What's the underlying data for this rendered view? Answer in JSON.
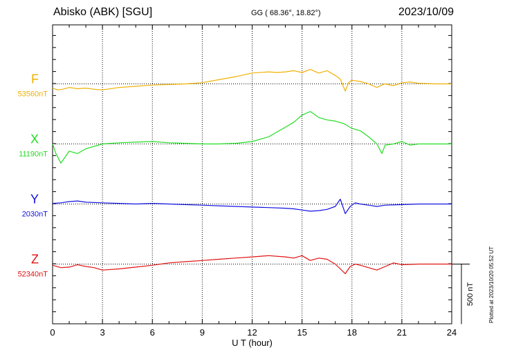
{
  "header": {
    "station": "Abisko (ABK)  [SGU]",
    "coords": "GG ( 68.36°,  18.82°)",
    "date": "2023/10/09"
  },
  "footer": {
    "plotted": "Plotted at 2023/10/20 05:52 UT"
  },
  "chart_data": {
    "type": "line",
    "xlabel": "U T (hour)",
    "xlim": [
      0,
      24
    ],
    "xticks": [
      0,
      3,
      6,
      9,
      12,
      15,
      18,
      21,
      24
    ],
    "scale_bar_label": "500 nT",
    "scale_bar_nT": 500,
    "panel_offset_nT": 500,
    "series": [
      {
        "name": "F",
        "baseline_label": "53560nT",
        "color": "#f0b000",
        "x": [
          0,
          0.3,
          0.6,
          1,
          1.5,
          2,
          2.5,
          3,
          4,
          5,
          6,
          7,
          8,
          9,
          10,
          11,
          12,
          13,
          13.5,
          14,
          14.5,
          15,
          15.5,
          16,
          16.5,
          17,
          17.3,
          17.6,
          17.8,
          18,
          18.5,
          19,
          19.5,
          19.8,
          20,
          20.5,
          21,
          21.5,
          22,
          23,
          24
        ],
        "y": [
          -35,
          -50,
          -45,
          -30,
          -40,
          -35,
          -45,
          -50,
          -30,
          -20,
          -10,
          -5,
          0,
          10,
          35,
          60,
          90,
          100,
          95,
          100,
          110,
          95,
          120,
          90,
          110,
          70,
          40,
          -60,
          10,
          30,
          20,
          0,
          -30,
          -10,
          0,
          -15,
          10,
          15,
          5,
          0,
          0
        ]
      },
      {
        "name": "X",
        "baseline_label": "11190nT",
        "color": "#20dd20",
        "x": [
          0,
          0.2,
          0.5,
          0.8,
          1,
          1.5,
          2,
          2.5,
          3,
          4,
          5,
          6,
          7,
          8,
          9,
          10,
          11,
          12,
          13,
          14,
          14.5,
          15,
          15.5,
          16,
          16.5,
          17,
          17.5,
          18,
          18.5,
          19,
          19.5,
          19.8,
          20,
          20.5,
          21,
          21.5,
          22,
          23,
          24
        ],
        "y": [
          0,
          -80,
          -160,
          -100,
          -60,
          -80,
          -40,
          -20,
          0,
          10,
          15,
          20,
          10,
          5,
          0,
          0,
          5,
          20,
          60,
          140,
          180,
          240,
          270,
          220,
          200,
          190,
          170,
          130,
          110,
          60,
          0,
          -80,
          -10,
          0,
          20,
          -10,
          0,
          0,
          0
        ]
      },
      {
        "name": "Y",
        "baseline_label": "2030nT",
        "color": "#1010e0",
        "x": [
          0,
          0.5,
          1,
          1.5,
          2,
          3,
          4,
          5,
          6,
          7,
          8,
          9,
          10,
          11,
          12,
          13,
          14,
          14.5,
          15,
          15.5,
          16,
          16.5,
          17,
          17.3,
          17.6,
          17.9,
          18.2,
          18.5,
          19,
          19.5,
          20,
          21,
          22,
          23,
          24
        ],
        "y": [
          5,
          10,
          20,
          25,
          15,
          10,
          5,
          0,
          5,
          0,
          -5,
          -10,
          -15,
          -20,
          -25,
          -30,
          -35,
          -40,
          -50,
          -60,
          -55,
          -45,
          -20,
          40,
          -80,
          -20,
          10,
          0,
          -10,
          -20,
          -10,
          -5,
          0,
          0,
          0
        ]
      },
      {
        "name": "Z",
        "baseline_label": "52340nT",
        "color": "#e01010",
        "x": [
          0,
          0.5,
          1,
          1.5,
          2,
          2.5,
          3,
          4,
          5,
          6,
          7,
          8,
          9,
          10,
          11,
          12,
          13,
          14,
          14.5,
          15,
          15.5,
          16,
          16.5,
          17,
          17.3,
          17.6,
          17.9,
          18.2,
          18.5,
          19,
          19.5,
          20,
          20.5,
          21,
          22,
          23,
          24
        ],
        "y": [
          -10,
          -30,
          -25,
          -5,
          -20,
          -30,
          -50,
          -40,
          -25,
          -10,
          10,
          20,
          30,
          40,
          50,
          60,
          70,
          60,
          50,
          70,
          30,
          50,
          40,
          0,
          -40,
          -80,
          -20,
          0,
          -10,
          -30,
          -50,
          -20,
          10,
          -5,
          0,
          0,
          0
        ]
      }
    ]
  }
}
